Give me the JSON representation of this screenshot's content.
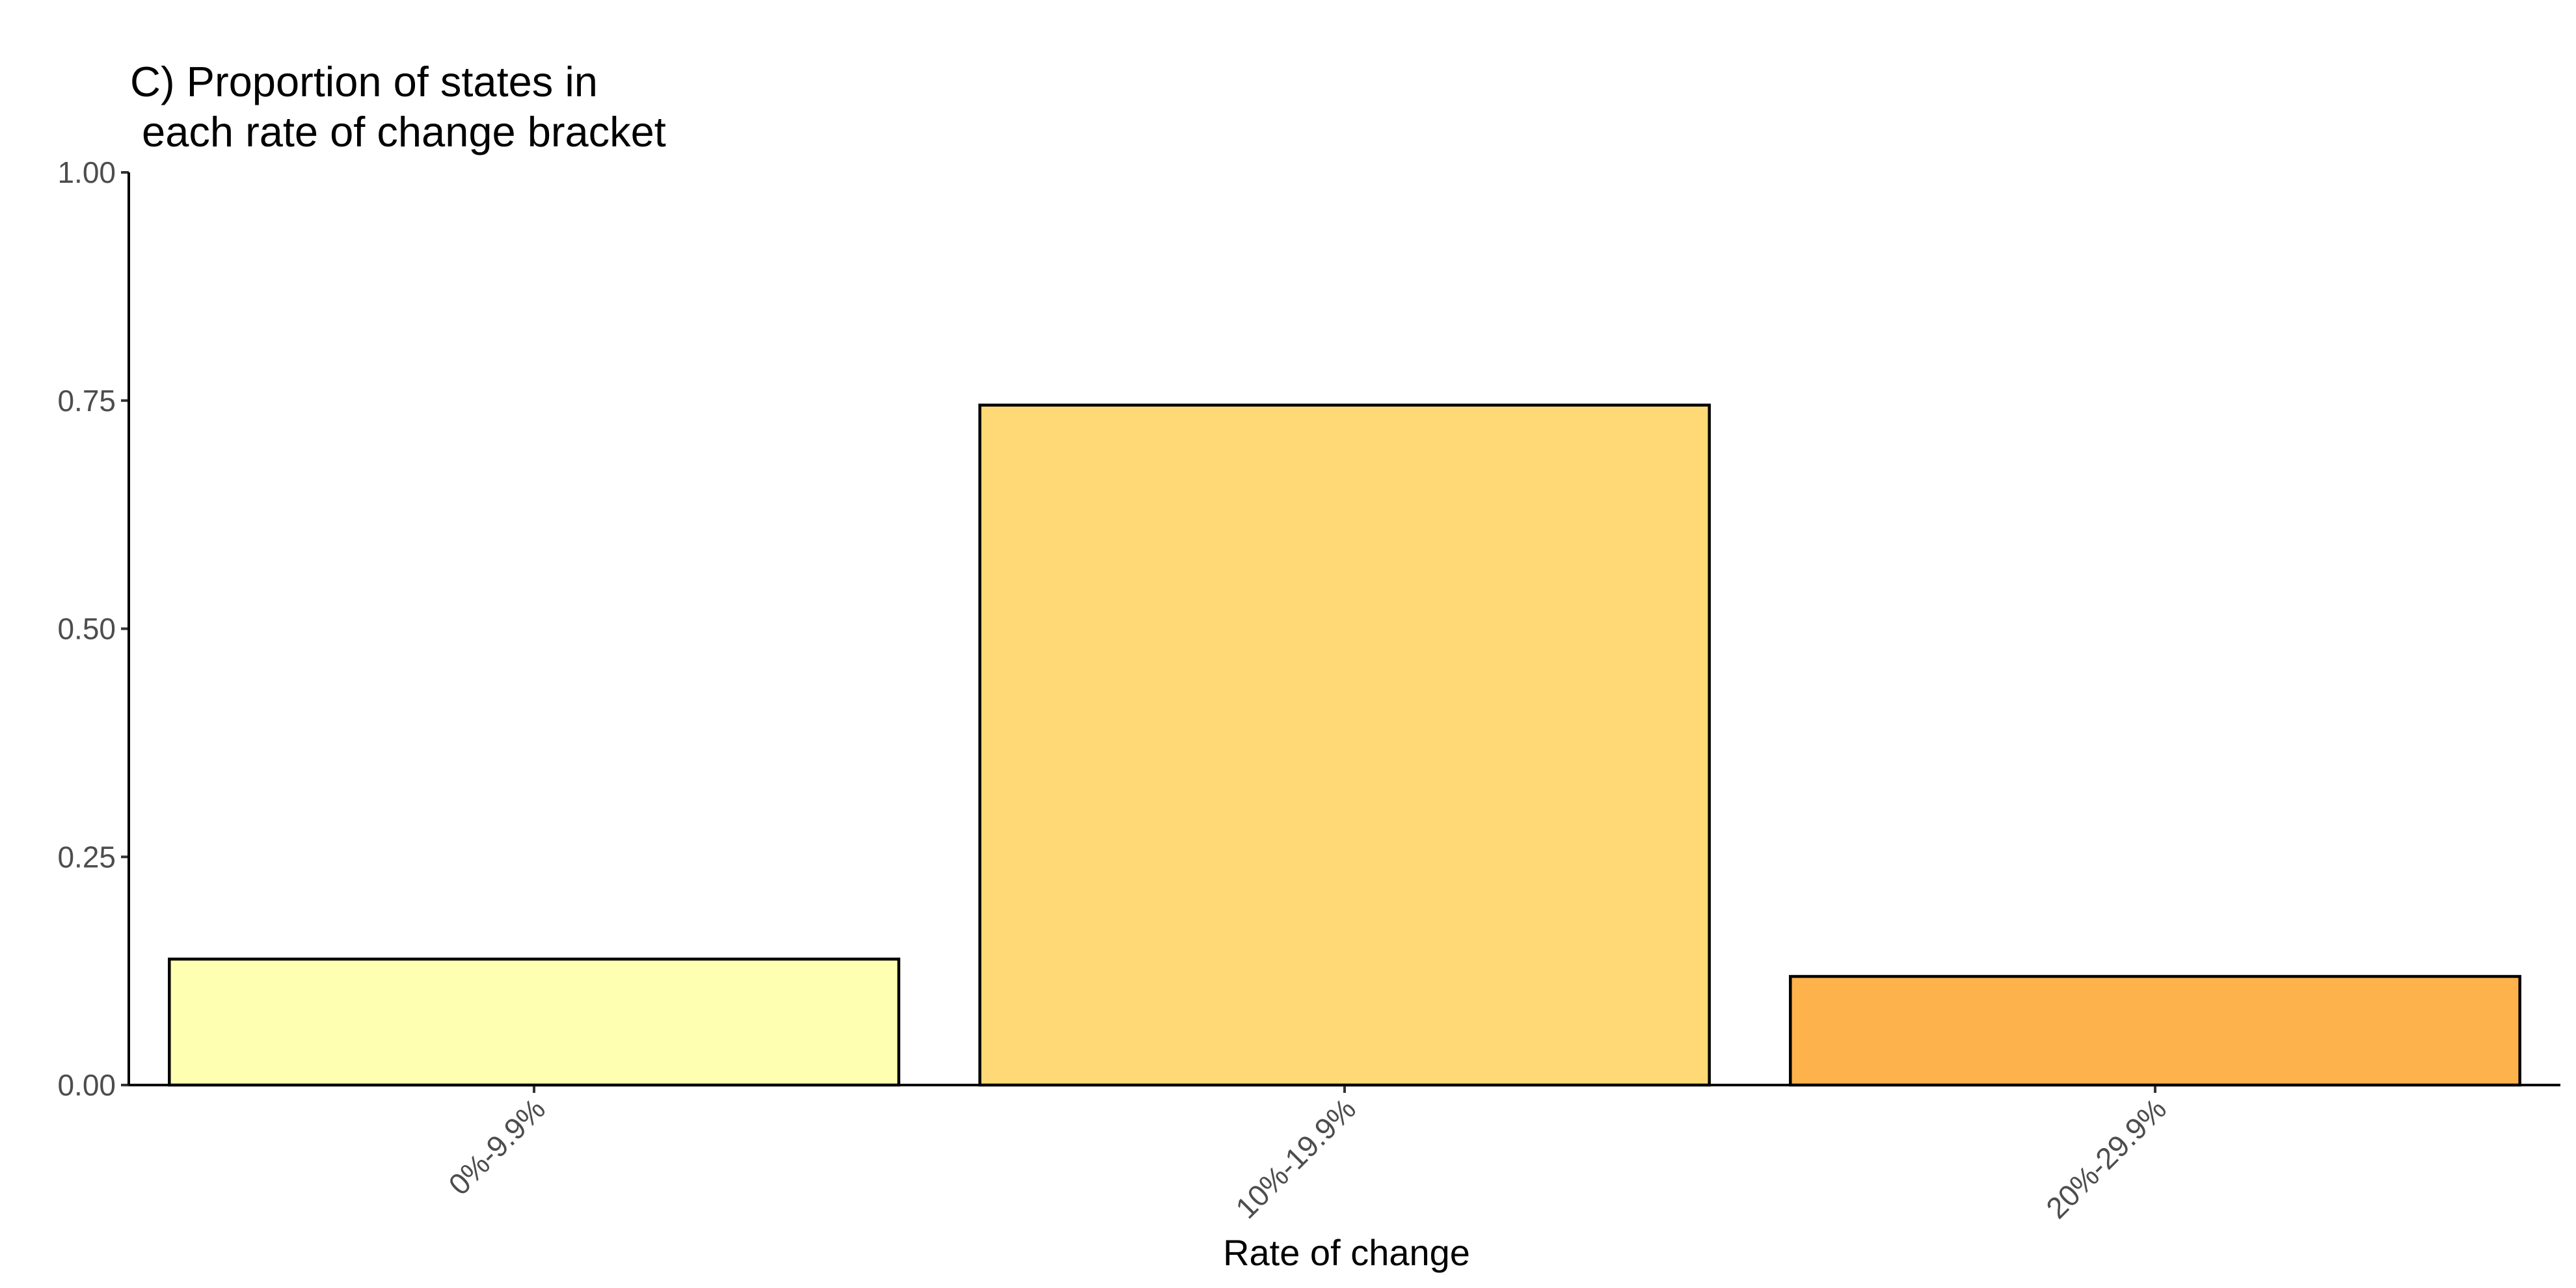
{
  "chart_data": {
    "type": "bar",
    "title_lines": [
      "C) Proportion of states in",
      " each rate of change bracket"
    ],
    "xlabel": "Rate of change",
    "ylabel": "",
    "categories": [
      "0%-9.9%",
      "10%-19.9%",
      "20%-29.9%"
    ],
    "values": [
      0.138,
      0.745,
      0.119
    ],
    "colors": [
      "#FFFFB2",
      "#FED976",
      "#FEB24C"
    ],
    "ylim": [
      0,
      1
    ],
    "yticks": [
      "0.00",
      "0.25",
      "0.50",
      "0.75",
      "1.00"
    ],
    "ytick_values": [
      0,
      0.25,
      0.5,
      0.75,
      1.0
    ],
    "grid": false,
    "legend": "none"
  }
}
